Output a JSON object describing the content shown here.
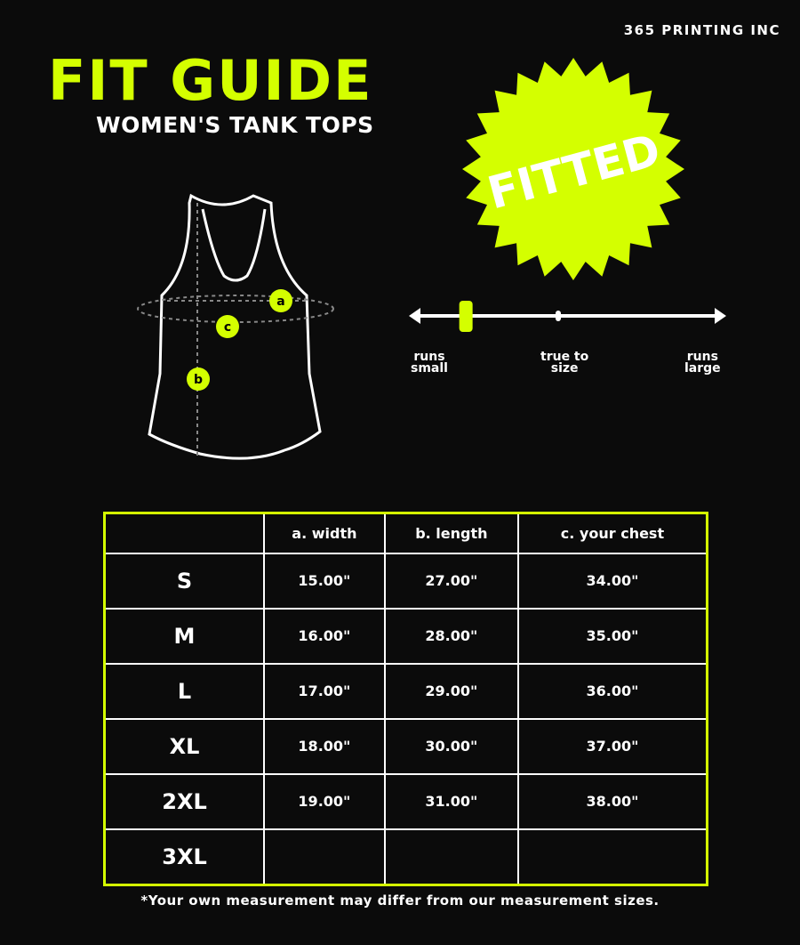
{
  "brand": "365 PRINTING INC",
  "title": "FIT GUIDE",
  "subtitle": "WOMEN'S TANK TOPS",
  "badge": {
    "label": "FITTED",
    "color": "#d4ff00"
  },
  "diagram": {
    "labels": [
      "a",
      "b",
      "c"
    ]
  },
  "fit_scale": {
    "position_percent": 17,
    "labels": {
      "left": [
        "runs",
        "small"
      ],
      "middle": [
        "true to",
        "size"
      ],
      "right": [
        "runs",
        "large"
      ]
    }
  },
  "table": {
    "headers": [
      "",
      "a. width",
      "b. length",
      "c. your chest"
    ],
    "rows": [
      [
        "S",
        "15.00\"",
        "27.00\"",
        "34.00\""
      ],
      [
        "M",
        "16.00\"",
        "28.00\"",
        "35.00\""
      ],
      [
        "L",
        "17.00\"",
        "29.00\"",
        "36.00\""
      ],
      [
        "XL",
        "18.00\"",
        "30.00\"",
        "37.00\""
      ],
      [
        "2XL",
        "19.00\"",
        "31.00\"",
        "38.00\""
      ],
      [
        "3XL",
        "",
        "",
        ""
      ]
    ]
  },
  "note": "*Your own measurement may differ from our measurement sizes."
}
